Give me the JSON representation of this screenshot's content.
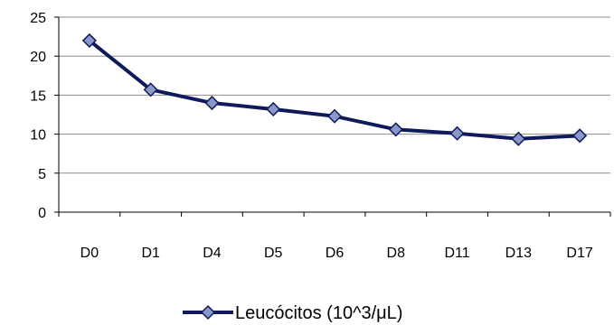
{
  "chart_data": {
    "type": "line",
    "categories": [
      "D0",
      "D1",
      "D4",
      "D5",
      "D6",
      "D8",
      "D11",
      "D13",
      "D17"
    ],
    "series": [
      {
        "name": "Leucócitos (10^3/μL)",
        "values": [
          22,
          15.7,
          14,
          13.2,
          12.3,
          10.6,
          10.1,
          9.4,
          9.8
        ]
      }
    ],
    "ylim": [
      0,
      25
    ],
    "yticks": [
      0,
      5,
      10,
      15,
      20,
      25
    ],
    "grid": true,
    "legend": "bottom",
    "colors": {
      "line": "#0f1a5c",
      "marker_fill": "#8a97c9",
      "grid": "#8c8c8c",
      "axis": "#000000"
    }
  }
}
